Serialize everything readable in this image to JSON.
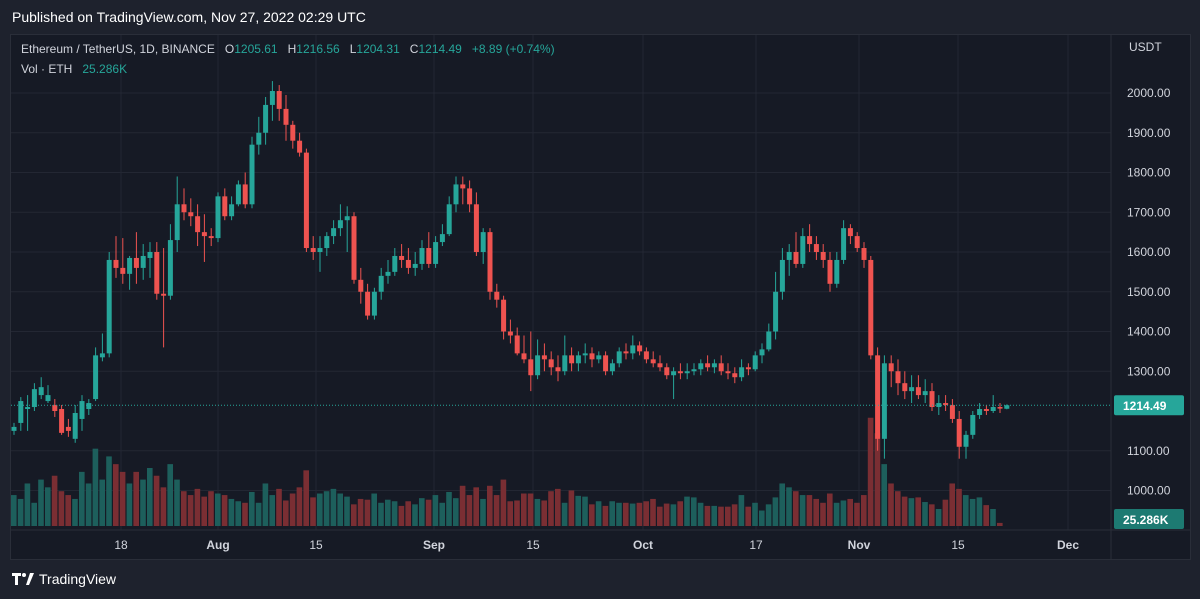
{
  "header": {
    "published": "Published on TradingView.com, Nov 27, 2022 02:29 UTC"
  },
  "legend": {
    "symbol": "Ethereum / TetherUS, 1D, BINANCE",
    "o_label": "O",
    "o_value": "1205.61",
    "h_label": "H",
    "h_value": "1216.56",
    "l_label": "L",
    "l_value": "1204.31",
    "c_label": "C",
    "c_value": "1214.49",
    "change": "+8.89 (+0.74%)",
    "vol_label": "Vol · ETH",
    "vol_value": "25.286K"
  },
  "footer": {
    "brand": "TradingView"
  },
  "colors": {
    "up": "#26a69a",
    "down": "#ef5350",
    "up_vol": "#1d5f5c",
    "down_vol": "#7a2e33"
  },
  "chart_data": {
    "type": "candlestick",
    "symbol": "Ethereum / TetherUS",
    "interval": "1D",
    "exchange": "BINANCE",
    "currency_label": "USDT",
    "y_ticks": [
      "2000.00",
      "1900.00",
      "1800.00",
      "1700.00",
      "1600.00",
      "1500.00",
      "1400.00",
      "1300.00",
      "1100.00",
      "1000.00"
    ],
    "x_ticks": [
      "18",
      "Aug",
      "15",
      "Sep",
      "15",
      "Oct",
      "17",
      "Nov",
      "15",
      "Dec"
    ],
    "last_price": "1214.49",
    "last_volume": "25.286K",
    "candles": [
      {
        "o": 1150,
        "h": 1170,
        "l": 1140,
        "c": 1160
      },
      {
        "o": 1170,
        "h": 1235,
        "l": 1150,
        "c": 1225
      },
      {
        "o": 1205,
        "h": 1240,
        "l": 1150,
        "c": 1210
      },
      {
        "o": 1210,
        "h": 1270,
        "l": 1200,
        "c": 1255
      },
      {
        "o": 1240,
        "h": 1285,
        "l": 1230,
        "c": 1260
      },
      {
        "o": 1225,
        "h": 1265,
        "l": 1220,
        "c": 1240
      },
      {
        "o": 1215,
        "h": 1230,
        "l": 1185,
        "c": 1200
      },
      {
        "o": 1205,
        "h": 1215,
        "l": 1140,
        "c": 1145
      },
      {
        "o": 1160,
        "h": 1180,
        "l": 1135,
        "c": 1150
      },
      {
        "o": 1130,
        "h": 1215,
        "l": 1120,
        "c": 1195
      },
      {
        "o": 1180,
        "h": 1240,
        "l": 1150,
        "c": 1225
      },
      {
        "o": 1205,
        "h": 1230,
        "l": 1190,
        "c": 1220
      },
      {
        "o": 1230,
        "h": 1360,
        "l": 1225,
        "c": 1340
      },
      {
        "o": 1335,
        "h": 1395,
        "l": 1325,
        "c": 1345
      },
      {
        "o": 1345,
        "h": 1600,
        "l": 1335,
        "c": 1580
      },
      {
        "o": 1580,
        "h": 1640,
        "l": 1535,
        "c": 1560
      },
      {
        "o": 1560,
        "h": 1635,
        "l": 1520,
        "c": 1545
      },
      {
        "o": 1545,
        "h": 1590,
        "l": 1505,
        "c": 1585
      },
      {
        "o": 1585,
        "h": 1650,
        "l": 1520,
        "c": 1560
      },
      {
        "o": 1560,
        "h": 1620,
        "l": 1530,
        "c": 1590
      },
      {
        "o": 1585,
        "h": 1625,
        "l": 1535,
        "c": 1600
      },
      {
        "o": 1600,
        "h": 1625,
        "l": 1480,
        "c": 1495
      },
      {
        "o": 1495,
        "h": 1610,
        "l": 1360,
        "c": 1490
      },
      {
        "o": 1490,
        "h": 1670,
        "l": 1480,
        "c": 1630
      },
      {
        "o": 1630,
        "h": 1790,
        "l": 1600,
        "c": 1720
      },
      {
        "o": 1720,
        "h": 1760,
        "l": 1680,
        "c": 1700
      },
      {
        "o": 1700,
        "h": 1735,
        "l": 1665,
        "c": 1690
      },
      {
        "o": 1690,
        "h": 1720,
        "l": 1615,
        "c": 1650
      },
      {
        "o": 1650,
        "h": 1695,
        "l": 1575,
        "c": 1640
      },
      {
        "o": 1640,
        "h": 1660,
        "l": 1615,
        "c": 1635
      },
      {
        "o": 1635,
        "h": 1750,
        "l": 1625,
        "c": 1740
      },
      {
        "o": 1740,
        "h": 1760,
        "l": 1680,
        "c": 1690
      },
      {
        "o": 1690,
        "h": 1740,
        "l": 1680,
        "c": 1720
      },
      {
        "o": 1720,
        "h": 1780,
        "l": 1715,
        "c": 1770
      },
      {
        "o": 1770,
        "h": 1800,
        "l": 1710,
        "c": 1720
      },
      {
        "o": 1720,
        "h": 1890,
        "l": 1710,
        "c": 1870
      },
      {
        "o": 1870,
        "h": 1940,
        "l": 1845,
        "c": 1900
      },
      {
        "o": 1900,
        "h": 1990,
        "l": 1870,
        "c": 1970
      },
      {
        "o": 1970,
        "h": 2030,
        "l": 1930,
        "c": 2005
      },
      {
        "o": 2005,
        "h": 2020,
        "l": 1930,
        "c": 1960
      },
      {
        "o": 1960,
        "h": 1995,
        "l": 1880,
        "c": 1920
      },
      {
        "o": 1920,
        "h": 1930,
        "l": 1860,
        "c": 1880
      },
      {
        "o": 1880,
        "h": 1900,
        "l": 1840,
        "c": 1850
      },
      {
        "o": 1850,
        "h": 1860,
        "l": 1600,
        "c": 1610
      },
      {
        "o": 1610,
        "h": 1640,
        "l": 1580,
        "c": 1600
      },
      {
        "o": 1600,
        "h": 1640,
        "l": 1550,
        "c": 1610
      },
      {
        "o": 1610,
        "h": 1650,
        "l": 1590,
        "c": 1640
      },
      {
        "o": 1640,
        "h": 1680,
        "l": 1620,
        "c": 1660
      },
      {
        "o": 1660,
        "h": 1720,
        "l": 1640,
        "c": 1680
      },
      {
        "o": 1680,
        "h": 1715,
        "l": 1600,
        "c": 1690
      },
      {
        "o": 1690,
        "h": 1700,
        "l": 1520,
        "c": 1530
      },
      {
        "o": 1530,
        "h": 1560,
        "l": 1470,
        "c": 1500
      },
      {
        "o": 1500,
        "h": 1520,
        "l": 1430,
        "c": 1440
      },
      {
        "o": 1440,
        "h": 1510,
        "l": 1430,
        "c": 1500
      },
      {
        "o": 1500,
        "h": 1560,
        "l": 1480,
        "c": 1540
      },
      {
        "o": 1540,
        "h": 1580,
        "l": 1520,
        "c": 1550
      },
      {
        "o": 1550,
        "h": 1610,
        "l": 1540,
        "c": 1590
      },
      {
        "o": 1590,
        "h": 1620,
        "l": 1560,
        "c": 1580
      },
      {
        "o": 1580,
        "h": 1610,
        "l": 1545,
        "c": 1560
      },
      {
        "o": 1560,
        "h": 1600,
        "l": 1540,
        "c": 1570
      },
      {
        "o": 1570,
        "h": 1630,
        "l": 1555,
        "c": 1610
      },
      {
        "o": 1610,
        "h": 1650,
        "l": 1560,
        "c": 1570
      },
      {
        "o": 1570,
        "h": 1640,
        "l": 1560,
        "c": 1625
      },
      {
        "o": 1625,
        "h": 1670,
        "l": 1615,
        "c": 1645
      },
      {
        "o": 1645,
        "h": 1740,
        "l": 1640,
        "c": 1720
      },
      {
        "o": 1720,
        "h": 1790,
        "l": 1700,
        "c": 1770
      },
      {
        "o": 1770,
        "h": 1790,
        "l": 1720,
        "c": 1760
      },
      {
        "o": 1760,
        "h": 1780,
        "l": 1700,
        "c": 1720
      },
      {
        "o": 1720,
        "h": 1750,
        "l": 1590,
        "c": 1600
      },
      {
        "o": 1600,
        "h": 1660,
        "l": 1570,
        "c": 1650
      },
      {
        "o": 1650,
        "h": 1660,
        "l": 1480,
        "c": 1500
      },
      {
        "o": 1500,
        "h": 1520,
        "l": 1460,
        "c": 1480
      },
      {
        "o": 1480,
        "h": 1490,
        "l": 1380,
        "c": 1400
      },
      {
        "o": 1400,
        "h": 1430,
        "l": 1370,
        "c": 1390
      },
      {
        "o": 1390,
        "h": 1410,
        "l": 1340,
        "c": 1345
      },
      {
        "o": 1345,
        "h": 1390,
        "l": 1320,
        "c": 1330
      },
      {
        "o": 1330,
        "h": 1400,
        "l": 1250,
        "c": 1290
      },
      {
        "o": 1290,
        "h": 1380,
        "l": 1280,
        "c": 1340
      },
      {
        "o": 1340,
        "h": 1370,
        "l": 1300,
        "c": 1330
      },
      {
        "o": 1330,
        "h": 1350,
        "l": 1290,
        "c": 1310
      },
      {
        "o": 1310,
        "h": 1340,
        "l": 1275,
        "c": 1300
      },
      {
        "o": 1300,
        "h": 1390,
        "l": 1290,
        "c": 1340
      },
      {
        "o": 1340,
        "h": 1360,
        "l": 1300,
        "c": 1320
      },
      {
        "o": 1320,
        "h": 1350,
        "l": 1300,
        "c": 1340
      },
      {
        "o": 1340,
        "h": 1370,
        "l": 1320,
        "c": 1345
      },
      {
        "o": 1345,
        "h": 1360,
        "l": 1310,
        "c": 1330
      },
      {
        "o": 1330,
        "h": 1350,
        "l": 1320,
        "c": 1340
      },
      {
        "o": 1340,
        "h": 1350,
        "l": 1290,
        "c": 1300
      },
      {
        "o": 1300,
        "h": 1330,
        "l": 1290,
        "c": 1320
      },
      {
        "o": 1320,
        "h": 1360,
        "l": 1310,
        "c": 1350
      },
      {
        "o": 1350,
        "h": 1370,
        "l": 1330,
        "c": 1345
      },
      {
        "o": 1345,
        "h": 1390,
        "l": 1330,
        "c": 1365
      },
      {
        "o": 1365,
        "h": 1375,
        "l": 1340,
        "c": 1350
      },
      {
        "o": 1350,
        "h": 1360,
        "l": 1320,
        "c": 1330
      },
      {
        "o": 1330,
        "h": 1350,
        "l": 1310,
        "c": 1320
      },
      {
        "o": 1320,
        "h": 1340,
        "l": 1300,
        "c": 1310
      },
      {
        "o": 1310,
        "h": 1320,
        "l": 1280,
        "c": 1290
      },
      {
        "o": 1290,
        "h": 1310,
        "l": 1230,
        "c": 1300
      },
      {
        "o": 1300,
        "h": 1320,
        "l": 1280,
        "c": 1295
      },
      {
        "o": 1295,
        "h": 1320,
        "l": 1280,
        "c": 1300
      },
      {
        "o": 1300,
        "h": 1320,
        "l": 1290,
        "c": 1305
      },
      {
        "o": 1305,
        "h": 1330,
        "l": 1290,
        "c": 1320
      },
      {
        "o": 1320,
        "h": 1340,
        "l": 1300,
        "c": 1310
      },
      {
        "o": 1310,
        "h": 1330,
        "l": 1295,
        "c": 1320
      },
      {
        "o": 1320,
        "h": 1340,
        "l": 1290,
        "c": 1300
      },
      {
        "o": 1300,
        "h": 1320,
        "l": 1280,
        "c": 1295
      },
      {
        "o": 1295,
        "h": 1310,
        "l": 1270,
        "c": 1285
      },
      {
        "o": 1285,
        "h": 1330,
        "l": 1275,
        "c": 1310
      },
      {
        "o": 1310,
        "h": 1320,
        "l": 1290,
        "c": 1305
      },
      {
        "o": 1305,
        "h": 1350,
        "l": 1300,
        "c": 1340
      },
      {
        "o": 1340,
        "h": 1370,
        "l": 1320,
        "c": 1355
      },
      {
        "o": 1355,
        "h": 1420,
        "l": 1350,
        "c": 1400
      },
      {
        "o": 1400,
        "h": 1550,
        "l": 1380,
        "c": 1500
      },
      {
        "o": 1500,
        "h": 1610,
        "l": 1480,
        "c": 1580
      },
      {
        "o": 1580,
        "h": 1620,
        "l": 1540,
        "c": 1600
      },
      {
        "o": 1600,
        "h": 1650,
        "l": 1560,
        "c": 1570
      },
      {
        "o": 1570,
        "h": 1660,
        "l": 1560,
        "c": 1640
      },
      {
        "o": 1640,
        "h": 1670,
        "l": 1600,
        "c": 1620
      },
      {
        "o": 1620,
        "h": 1640,
        "l": 1580,
        "c": 1600
      },
      {
        "o": 1600,
        "h": 1620,
        "l": 1560,
        "c": 1580
      },
      {
        "o": 1580,
        "h": 1600,
        "l": 1500,
        "c": 1520
      },
      {
        "o": 1520,
        "h": 1600,
        "l": 1510,
        "c": 1580
      },
      {
        "o": 1580,
        "h": 1680,
        "l": 1570,
        "c": 1660
      },
      {
        "o": 1660,
        "h": 1670,
        "l": 1620,
        "c": 1640
      },
      {
        "o": 1640,
        "h": 1650,
        "l": 1600,
        "c": 1610
      },
      {
        "o": 1610,
        "h": 1625,
        "l": 1560,
        "c": 1580
      },
      {
        "o": 1580,
        "h": 1590,
        "l": 1330,
        "c": 1340
      },
      {
        "o": 1340,
        "h": 1360,
        "l": 1100,
        "c": 1130
      },
      {
        "o": 1130,
        "h": 1340,
        "l": 1080,
        "c": 1320
      },
      {
        "o": 1320,
        "h": 1340,
        "l": 1260,
        "c": 1300
      },
      {
        "o": 1300,
        "h": 1330,
        "l": 1240,
        "c": 1270
      },
      {
        "o": 1270,
        "h": 1300,
        "l": 1230,
        "c": 1250
      },
      {
        "o": 1250,
        "h": 1290,
        "l": 1220,
        "c": 1260
      },
      {
        "o": 1260,
        "h": 1290,
        "l": 1230,
        "c": 1240
      },
      {
        "o": 1240,
        "h": 1280,
        "l": 1220,
        "c": 1250
      },
      {
        "o": 1250,
        "h": 1270,
        "l": 1200,
        "c": 1210
      },
      {
        "o": 1210,
        "h": 1240,
        "l": 1190,
        "c": 1220
      },
      {
        "o": 1220,
        "h": 1240,
        "l": 1200,
        "c": 1215
      },
      {
        "o": 1215,
        "h": 1230,
        "l": 1170,
        "c": 1180
      },
      {
        "o": 1180,
        "h": 1200,
        "l": 1080,
        "c": 1110
      },
      {
        "o": 1110,
        "h": 1150,
        "l": 1080,
        "c": 1140
      },
      {
        "o": 1140,
        "h": 1200,
        "l": 1130,
        "c": 1190
      },
      {
        "o": 1190,
        "h": 1220,
        "l": 1180,
        "c": 1205
      },
      {
        "o": 1205,
        "h": 1215,
        "l": 1190,
        "c": 1200
      },
      {
        "o": 1200,
        "h": 1240,
        "l": 1195,
        "c": 1210
      },
      {
        "o": 1210,
        "h": 1220,
        "l": 1195,
        "c": 1206
      },
      {
        "o": 1205.61,
        "h": 1216.56,
        "l": 1204.31,
        "c": 1214.49
      }
    ],
    "volumes": [
      40,
      35,
      55,
      30,
      60,
      50,
      65,
      45,
      40,
      35,
      70,
      55,
      100,
      60,
      90,
      80,
      70,
      55,
      70,
      60,
      75,
      65,
      50,
      80,
      60,
      45,
      40,
      48,
      38,
      45,
      42,
      40,
      35,
      32,
      30,
      44,
      30,
      55,
      40,
      48,
      33,
      42,
      50,
      72,
      37,
      42,
      45,
      48,
      42,
      38,
      28,
      35,
      34,
      42,
      30,
      34,
      32,
      26,
      32,
      28,
      36,
      34,
      40,
      30,
      44,
      36,
      52,
      40,
      50,
      35,
      52,
      40,
      60,
      32,
      33,
      42,
      42,
      35,
      33,
      45,
      48,
      30,
      46,
      39,
      38,
      28,
      32,
      26,
      32,
      30,
      30,
      29,
      30,
      32,
      35,
      25,
      29,
      28,
      32,
      38,
      37,
      30,
      26,
      26,
      25,
      25,
      28,
      40,
      25,
      30,
      20,
      28,
      37,
      55,
      50,
      45,
      40,
      40,
      35,
      30,
      42,
      30,
      33,
      35,
      30,
      40,
      140,
      120,
      80,
      55,
      45,
      38,
      36,
      37,
      31,
      28,
      22,
      34,
      55,
      48,
      40,
      35,
      37,
      27,
      22,
      4
    ],
    "volume_scale_max": 150,
    "price_min": 1000,
    "price_max": 2000
  }
}
